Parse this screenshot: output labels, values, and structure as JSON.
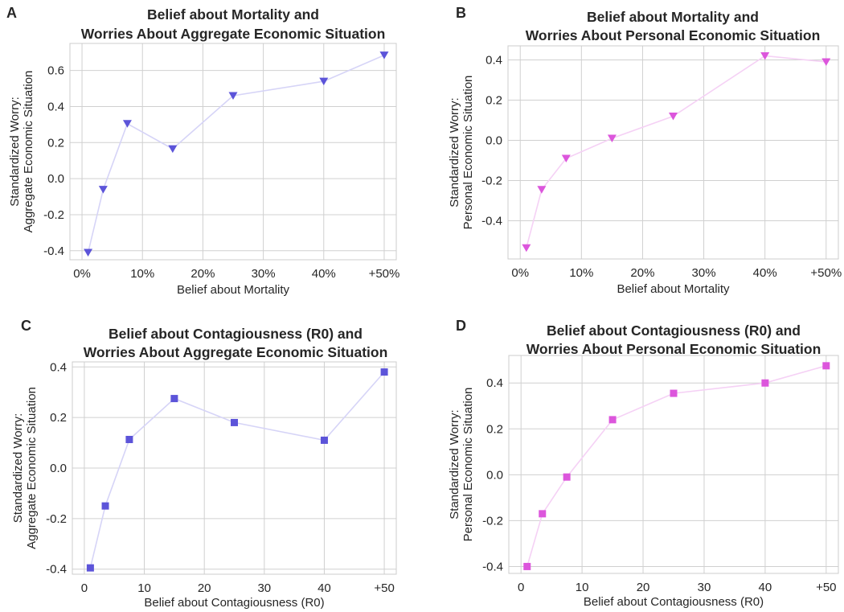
{
  "colors": {
    "aggregate_marker": "#5c54d9",
    "aggregate_line": "#d6d4f7",
    "personal_marker": "#dc56dc",
    "personal_line": "#f5d1f5",
    "grid": "#d0d0d0",
    "frame": "#cccccc"
  },
  "chart_data": [
    {
      "panel": "A",
      "type": "line",
      "title_line1": "Belief about Mortality and",
      "title_line2": "Worries About Aggregate Economic Situation",
      "xlabel": "Belief about Mortality",
      "ylabel_line1": "Standardized Worry:",
      "ylabel_line2": "Aggregate Economic Situation",
      "marker": "triangle-down",
      "color_key": "aggregate",
      "xlim": [
        -2,
        52
      ],
      "ylim": [
        -0.45,
        0.75
      ],
      "xticks": [
        0,
        10,
        20,
        30,
        40,
        50
      ],
      "xtick_labels": [
        "0%",
        "10%",
        "20%",
        "30%",
        "40%",
        "+50%"
      ],
      "yticks": [
        -0.4,
        -0.2,
        0.0,
        0.2,
        0.4,
        0.6
      ],
      "ytick_labels": [
        "-0.4",
        "-0.2",
        "0.0",
        "0.2",
        "0.4",
        "0.6"
      ],
      "x": [
        1,
        3.5,
        7.5,
        15,
        25,
        40,
        50
      ],
      "y": [
        -0.41,
        -0.06,
        0.305,
        0.165,
        0.46,
        0.54,
        0.685
      ]
    },
    {
      "panel": "B",
      "type": "line",
      "title_line1": "Belief about Mortality and",
      "title_line2": "Worries About Personal Economic Situation",
      "xlabel": "Belief about Mortality",
      "ylabel_line1": "Standardized Worry:",
      "ylabel_line2": "Personal Economic Situation",
      "marker": "triangle-down",
      "color_key": "personal",
      "xlim": [
        -2,
        52
      ],
      "ylim": [
        -0.59,
        0.47
      ],
      "xticks": [
        0,
        10,
        20,
        30,
        40,
        50
      ],
      "xtick_labels": [
        "0%",
        "10%",
        "20%",
        "30%",
        "40%",
        "+50%"
      ],
      "yticks": [
        -0.4,
        -0.2,
        0.0,
        0.2,
        0.4
      ],
      "ytick_labels": [
        "-0.4",
        "-0.2",
        "0.0",
        "0.2",
        "0.4"
      ],
      "x": [
        1,
        3.5,
        7.5,
        15,
        25,
        40,
        50
      ],
      "y": [
        -0.535,
        -0.245,
        -0.09,
        0.01,
        0.12,
        0.42,
        0.39
      ]
    },
    {
      "panel": "C",
      "type": "line",
      "title_line1": "Belief about Contagiousness (R0) and",
      "title_line2": "Worries About Aggregate Economic Situation",
      "xlabel": "Belief about Contagiousness (R0)",
      "ylabel_line1": "Standardized Worry:",
      "ylabel_line2": "Aggregate Economic Situation",
      "marker": "square",
      "color_key": "aggregate",
      "xlim": [
        -2,
        52
      ],
      "ylim": [
        -0.42,
        0.42
      ],
      "xticks": [
        0,
        10,
        20,
        30,
        40,
        50
      ],
      "xtick_labels": [
        "0",
        "10",
        "20",
        "30",
        "40",
        "+50"
      ],
      "yticks": [
        -0.4,
        -0.2,
        0.0,
        0.2,
        0.4
      ],
      "ytick_labels": [
        "-0.4",
        "-0.2",
        "0.0",
        "0.2",
        "0.4"
      ],
      "x": [
        1,
        3.5,
        7.5,
        15,
        25,
        40,
        50
      ],
      "y": [
        -0.395,
        -0.15,
        0.113,
        0.275,
        0.18,
        0.11,
        0.38
      ]
    },
    {
      "panel": "D",
      "type": "line",
      "title_line1": "Belief about Contagiousness (R0) and",
      "title_line2": "Worries About Personal Economic Situation",
      "xlabel": "Belief about Contagiousness (R0)",
      "ylabel_line1": "Standardized Worry:",
      "ylabel_line2": "Personal Economic Situation",
      "marker": "square",
      "color_key": "personal",
      "xlim": [
        -2,
        52
      ],
      "ylim": [
        -0.43,
        0.52
      ],
      "xticks": [
        0,
        10,
        20,
        30,
        40,
        50
      ],
      "xtick_labels": [
        "0",
        "10",
        "20",
        "30",
        "40",
        "+50"
      ],
      "yticks": [
        -0.4,
        -0.2,
        0.0,
        0.2,
        0.4
      ],
      "ytick_labels": [
        "-0.4",
        "-0.2",
        "0.0",
        "0.2",
        "0.4"
      ],
      "x": [
        1,
        3.5,
        7.5,
        15,
        25,
        40,
        50
      ],
      "y": [
        -0.4,
        -0.17,
        -0.01,
        0.24,
        0.355,
        0.4,
        0.475
      ]
    }
  ]
}
